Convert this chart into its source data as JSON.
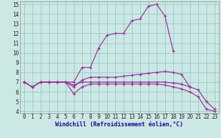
{
  "xlabel": "Windchill (Refroidissement éolien,°C)",
  "background_color": "#cce8e4",
  "grid_color": "#99cccc",
  "line_color": "#993399",
  "xlim": [
    -0.5,
    23.5
  ],
  "ylim": [
    3.8,
    15.3
  ],
  "xticks": [
    0,
    1,
    2,
    3,
    4,
    5,
    6,
    7,
    8,
    9,
    10,
    11,
    12,
    13,
    14,
    15,
    16,
    17,
    18,
    19,
    20,
    21,
    22,
    23
  ],
  "yticks": [
    4,
    5,
    6,
    7,
    8,
    9,
    10,
    11,
    12,
    13,
    14,
    15
  ],
  "series": [
    [
      7.0,
      6.5,
      7.0,
      7.0,
      7.0,
      7.0,
      7.0,
      8.5,
      8.5,
      10.5,
      11.8,
      12.0,
      12.0,
      13.3,
      13.5,
      14.8,
      15.0,
      13.8,
      10.2,
      null,
      null,
      null,
      null,
      null
    ],
    [
      7.0,
      6.5,
      7.0,
      7.0,
      7.0,
      7.0,
      6.5,
      7.2,
      7.5,
      7.5,
      7.5,
      7.5,
      7.6,
      7.7,
      7.8,
      7.9,
      8.0,
      8.1,
      8.0,
      7.8,
      6.5,
      null,
      null,
      null
    ],
    [
      7.0,
      6.5,
      7.0,
      7.0,
      7.0,
      7.0,
      6.7,
      7.0,
      7.0,
      7.0,
      7.0,
      7.0,
      7.0,
      7.0,
      7.0,
      7.0,
      7.0,
      7.0,
      6.9,
      6.8,
      6.5,
      6.2,
      5.0,
      4.2
    ],
    [
      7.0,
      6.5,
      7.0,
      7.0,
      7.0,
      7.0,
      5.8,
      6.5,
      6.8,
      6.8,
      6.8,
      6.8,
      6.8,
      6.8,
      6.8,
      6.8,
      6.8,
      6.7,
      6.5,
      6.3,
      6.0,
      5.5,
      4.2,
      4.0
    ]
  ]
}
